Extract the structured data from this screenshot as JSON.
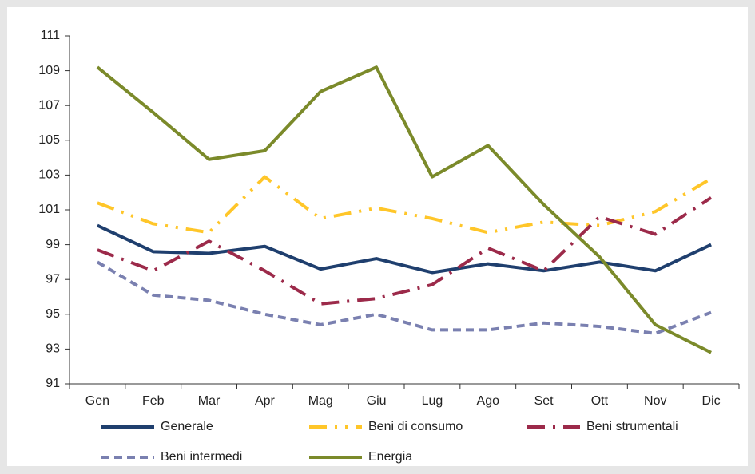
{
  "chart_data": {
    "type": "line",
    "categories": [
      "Gen",
      "Feb",
      "Mar",
      "Apr",
      "Mag",
      "Giu",
      "Lug",
      "Ago",
      "Set",
      "Ott",
      "Nov",
      "Dic"
    ],
    "series": [
      {
        "name": "Generale",
        "color": "#1f3f6e",
        "style": "solid",
        "values": [
          100.1,
          98.6,
          98.5,
          98.9,
          97.6,
          98.2,
          97.4,
          97.9,
          97.5,
          98.0,
          97.5,
          99.0
        ]
      },
      {
        "name": "Beni di consumo",
        "color": "#ffc629",
        "style": "dashdotdot",
        "values": [
          101.4,
          100.2,
          99.7,
          102.9,
          100.5,
          101.1,
          100.5,
          99.7,
          100.3,
          100.1,
          100.9,
          102.8
        ]
      },
      {
        "name": "Beni strumentali",
        "color": "#9c2a4a",
        "style": "dashdot",
        "values": [
          98.7,
          97.5,
          99.2,
          97.5,
          95.6,
          95.9,
          96.7,
          98.8,
          97.5,
          100.6,
          99.6,
          101.7
        ]
      },
      {
        "name": "Beni intermedi",
        "color": "#7a80b0",
        "style": "dashed",
        "values": [
          98.0,
          96.1,
          95.8,
          95.0,
          94.4,
          95.0,
          94.1,
          94.1,
          94.5,
          94.3,
          93.9,
          95.1
        ]
      },
      {
        "name": "Energia",
        "color": "#7b8a2a",
        "style": "solid",
        "values": [
          109.2,
          106.6,
          103.9,
          104.4,
          107.8,
          109.2,
          102.9,
          104.7,
          101.3,
          98.3,
          94.4,
          92.8
        ]
      }
    ],
    "ylim": [
      91,
      111
    ],
    "yticks": [
      91,
      93,
      95,
      97,
      99,
      101,
      103,
      105,
      107,
      109,
      111
    ],
    "grid": false
  }
}
